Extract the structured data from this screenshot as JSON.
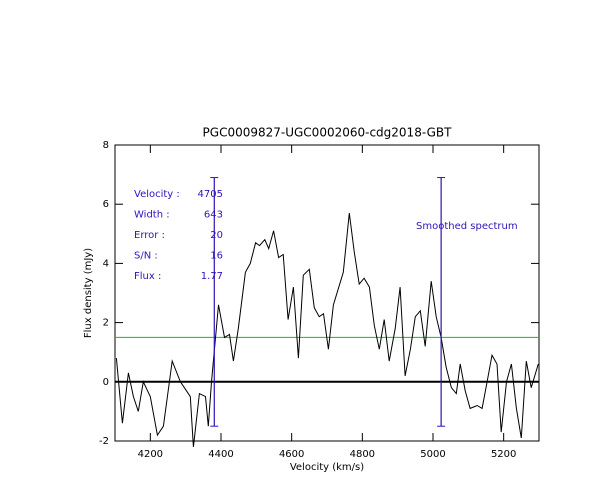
{
  "chart_data": {
    "type": "line",
    "title": "PGC0009827-UGC0002060-cdg2018-GBT",
    "xlabel": "Velocity (km/s)",
    "ylabel": "Flux density (mJy)",
    "xlim": [
      4100,
      5300
    ],
    "xticks": [
      4200,
      4400,
      4600,
      4800,
      5000,
      5200
    ],
    "ylim": [
      -2,
      8
    ],
    "yticks": [
      -2,
      0,
      2,
      4,
      6,
      8
    ],
    "x": [
      4104,
      4121,
      4138,
      4152,
      4166,
      4180,
      4200,
      4220,
      4237,
      4262,
      4285,
      4302,
      4313,
      4322,
      4339,
      4356,
      4364,
      4373,
      4393,
      4410,
      4424,
      4435,
      4449,
      4469,
      4483,
      4498,
      4509,
      4524,
      4535,
      4549,
      4563,
      4576,
      4590,
      4605,
      4619,
      4633,
      4650,
      4664,
      4678,
      4690,
      4704,
      4718,
      4746,
      4763,
      4777,
      4791,
      4805,
      4820,
      4834,
      4848,
      4862,
      4876,
      4893,
      4907,
      4921,
      4936,
      4950,
      4964,
      4978,
      4995,
      5009,
      5023,
      5037,
      5052,
      5066,
      5077,
      5091,
      5105,
      5125,
      5139,
      5153,
      5167,
      5181,
      5193,
      5208,
      5222,
      5236,
      5250,
      5264,
      5278,
      5298
    ],
    "series": [
      {
        "color": "#000000",
        "values": [
          0.8,
          -1.4,
          0.3,
          -0.5,
          -1.0,
          0.0,
          -0.5,
          -1.8,
          -1.5,
          0.7,
          0.0,
          -0.3,
          -0.5,
          -2.2,
          -0.4,
          -0.5,
          -1.5,
          0.0,
          2.6,
          1.5,
          1.6,
          0.7,
          1.8,
          3.7,
          4.0,
          4.7,
          4.6,
          4.8,
          4.5,
          5.1,
          4.2,
          4.3,
          2.1,
          3.2,
          0.8,
          3.6,
          3.8,
          2.5,
          2.2,
          2.3,
          1.1,
          2.6,
          3.7,
          5.7,
          4.4,
          3.3,
          3.5,
          3.2,
          1.9,
          1.1,
          2.1,
          0.7,
          1.8,
          3.2,
          0.2,
          1.1,
          2.2,
          2.4,
          1.2,
          3.4,
          2.2,
          1.5,
          0.5,
          -0.2,
          -0.4,
          0.6,
          -0.3,
          -0.9,
          -0.8,
          -0.9,
          0.0,
          0.9,
          0.6,
          -1.7,
          0.0,
          0.6,
          -0.9,
          -1.9,
          0.7,
          -0.2,
          0.6
        ]
      }
    ],
    "threshold": {
      "value": 1.5,
      "color": "#00cc00"
    },
    "zero_line": {
      "value": 0,
      "color": "#000000"
    },
    "markers": [
      {
        "x": 4381,
        "ylow": -1.5,
        "yhigh": 6.9,
        "color": "#3311bb"
      },
      {
        "x": 5023,
        "ylow": -1.5,
        "yhigh": 6.9,
        "color": "#3311bb"
      }
    ],
    "stats": [
      {
        "label": "Velocity :",
        "value": 4705
      },
      {
        "label": "Width :",
        "value": 643
      },
      {
        "label": "Error :",
        "value": 20
      },
      {
        "label": "S/N :",
        "value": 16
      },
      {
        "label": "Flux :",
        "value": 1.77
      }
    ],
    "annotation": "Smoothed spectrum",
    "annotation_color": "#3311bb"
  }
}
